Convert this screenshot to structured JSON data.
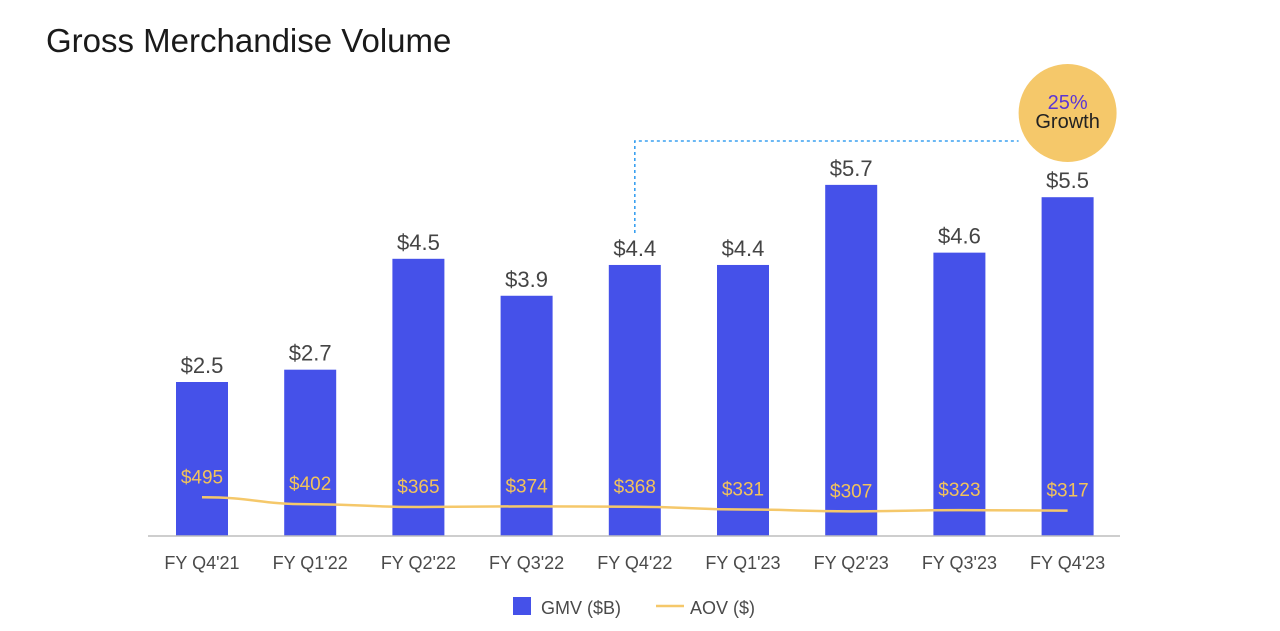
{
  "title": "Gross Merchandise Volume",
  "colors": {
    "bar": "#4551e9",
    "line": "#f5c86a",
    "badge": "#f5c86a",
    "badge_accent": "#5b35d5",
    "connector": "#3aa0f0"
  },
  "chart_data": {
    "type": "bar",
    "title": "Gross Merchandise Volume",
    "categories": [
      "FY Q4'21",
      "FY Q1'22",
      "FY Q2'22",
      "FY Q3'22",
      "FY Q4'22",
      "FY Q1'23",
      "FY Q2'23",
      "FY Q3'23",
      "FY Q4'23"
    ],
    "series": [
      {
        "name": "GMV ($B)",
        "type": "bar",
        "values": [
          2.5,
          2.7,
          4.5,
          3.9,
          4.4,
          4.4,
          5.7,
          4.6,
          5.5
        ],
        "labels": [
          "$2.5",
          "$2.7",
          "$4.5",
          "$3.9",
          "$4.4",
          "$4.4",
          "$5.7",
          "$4.6",
          "$5.5"
        ]
      },
      {
        "name": "AOV ($)",
        "type": "line",
        "values": [
          495,
          402,
          365,
          374,
          368,
          331,
          307,
          323,
          317
        ],
        "labels": [
          "$495",
          "$402",
          "$365",
          "$374",
          "$368",
          "$331",
          "$307",
          "$323",
          "$317"
        ]
      }
    ],
    "legend": {
      "position": "bottom-center",
      "items": [
        "GMV ($B)",
        "AOV ($)"
      ]
    },
    "annotation": {
      "from": "FY Q4'22",
      "to": "FY Q4'23",
      "percent": "25%",
      "text": "Growth"
    },
    "xlabel": "",
    "ylabel": "",
    "ylim": [
      0,
      6.5
    ],
    "grid": false
  }
}
